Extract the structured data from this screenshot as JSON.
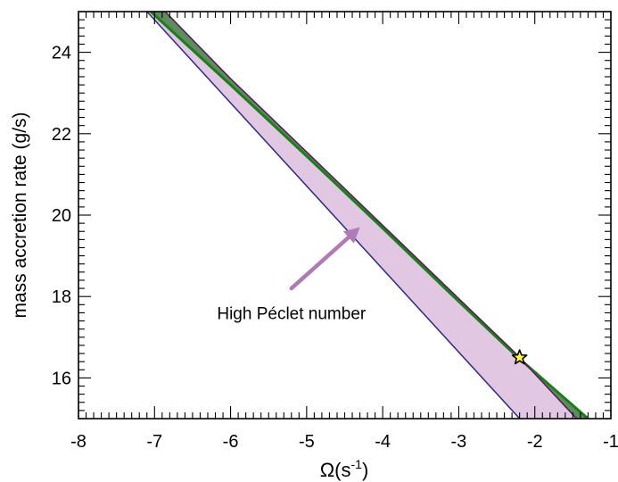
{
  "chart_data": {
    "type": "area",
    "xlabel": "Ω(s",
    "xlabel_superscript": "-1",
    "xlabel_close": ")",
    "ylabel": "mass accretion rate (g/s)",
    "xlim": [
      -8,
      -1
    ],
    "ylim": [
      15,
      25
    ],
    "x_ticks": [
      -8,
      -7,
      -6,
      -5,
      -4,
      -3,
      -2,
      -1
    ],
    "x_tick_labels": [
      "-8",
      "-7",
      "-6",
      "-5",
      "-4",
      "-3",
      "-2",
      "-1"
    ],
    "y_ticks": [
      16,
      18,
      20,
      22,
      24
    ],
    "y_tick_labels": [
      "16",
      "18",
      "20",
      "22",
      "24"
    ],
    "x_minor_step": 0.1,
    "y_minor_step": 0.2,
    "grid": false,
    "regions": [
      {
        "fill": "#e2c7e2",
        "edge": "#2b2b8a",
        "polygon": [
          [
            -7.1,
            25
          ],
          [
            -2.2,
            15
          ],
          [
            -1.45,
            15
          ],
          [
            -1.95,
            16.0
          ],
          [
            -2.25,
            16.6
          ],
          [
            -3.0,
            17.95
          ],
          [
            -4.0,
            19.75
          ],
          [
            -5.0,
            21.55
          ],
          [
            -6.0,
            23.35
          ],
          [
            -6.86,
            25
          ]
        ]
      },
      {
        "fill": "#5e8c5e",
        "edge": "#000000",
        "polygon": [
          [
            -6.86,
            25
          ],
          [
            -7.05,
            25
          ],
          [
            -6.0,
            23.2
          ],
          [
            -5.0,
            21.45
          ],
          [
            -4.0,
            19.68
          ],
          [
            -3.0,
            17.88
          ],
          [
            -2.25,
            16.55
          ],
          [
            -1.3,
            15.0
          ],
          [
            -1.45,
            15
          ],
          [
            -1.95,
            16.0
          ],
          [
            -2.25,
            16.6
          ],
          [
            -3.0,
            17.95
          ],
          [
            -4.0,
            19.75
          ],
          [
            -5.0,
            21.55
          ],
          [
            -6.0,
            23.35
          ]
        ]
      }
    ],
    "lines": [
      {
        "color": "#1a7f1a",
        "width": 3,
        "x": [
          -7.05,
          -6.0,
          -5.0,
          -4.0,
          -3.0,
          -2.25,
          -1.3
        ],
        "y": [
          25,
          23.2,
          21.45,
          19.68,
          17.88,
          16.55,
          15.0
        ]
      },
      {
        "color": "#5a1a5a",
        "width": 1.5,
        "x": [
          -6.86,
          -6.0,
          -5.0,
          -4.0,
          -3.0,
          -2.25,
          -1.95,
          -1.45
        ],
        "y": [
          25,
          23.35,
          21.55,
          19.75,
          17.95,
          16.6,
          16.0,
          15.0
        ]
      },
      {
        "color": "#2b2b8a",
        "width": 1.5,
        "x": [
          -7.1,
          -2.2
        ],
        "y": [
          25,
          15
        ]
      }
    ],
    "marker": {
      "x": -2.2,
      "y": 16.5,
      "symbol": "star",
      "fill": "#ffff33",
      "edge": "#000000"
    },
    "annotation": {
      "text": "High Péclet number",
      "text_x": -5.2,
      "text_y": 17.45,
      "arrow_from": [
        -5.2,
        18.2
      ],
      "arrow_to": [
        -4.3,
        19.7
      ],
      "arrow_color": "#b07ab5"
    }
  }
}
